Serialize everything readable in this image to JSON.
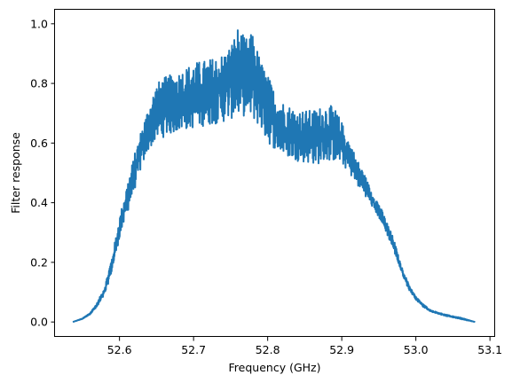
{
  "chart_data": {
    "type": "line",
    "title": "",
    "xlabel": "Frequency (GHz)",
    "ylabel": "Filter response",
    "xlim": [
      52.513,
      53.107
    ],
    "ylim": [
      -0.05,
      1.05
    ],
    "xticks": [
      52.6,
      52.7,
      52.8,
      52.9,
      53.0,
      53.1
    ],
    "xtick_labels": [
      "52.6",
      "52.7",
      "52.8",
      "52.9",
      "53.0",
      "53.1"
    ],
    "yticks": [
      0.0,
      0.2,
      0.4,
      0.6,
      0.8,
      1.0
    ],
    "ytick_labels": [
      "0.0",
      "0.2",
      "0.4",
      "0.6",
      "0.8",
      "1.0"
    ],
    "grid": false,
    "legend": "none",
    "series": [
      {
        "color": "#1f77b4",
        "x_start": 52.537,
        "x_end": 53.08,
        "envelope_x": [
          52.537,
          52.55,
          52.56,
          52.57,
          52.58,
          52.59,
          52.6,
          52.61,
          52.62,
          52.63,
          52.64,
          52.65,
          52.66,
          52.68,
          52.7,
          52.72,
          52.74,
          52.75,
          52.76,
          52.77,
          52.78,
          52.79,
          52.8,
          52.81,
          52.82,
          52.84,
          52.86,
          52.87,
          52.88,
          52.89,
          52.9,
          52.91,
          52.92,
          52.93,
          52.94,
          52.95,
          52.96,
          52.97,
          52.98,
          52.99,
          53.0,
          53.01,
          53.02,
          53.04,
          53.06,
          53.08
        ],
        "envelope_lower": [
          0.0,
          0.01,
          0.025,
          0.05,
          0.09,
          0.17,
          0.28,
          0.36,
          0.44,
          0.52,
          0.58,
          0.61,
          0.62,
          0.64,
          0.65,
          0.66,
          0.67,
          0.68,
          0.69,
          0.69,
          0.68,
          0.65,
          0.6,
          0.58,
          0.56,
          0.54,
          0.53,
          0.53,
          0.54,
          0.54,
          0.53,
          0.5,
          0.46,
          0.43,
          0.39,
          0.35,
          0.3,
          0.24,
          0.17,
          0.11,
          0.075,
          0.05,
          0.035,
          0.02,
          0.01,
          0.0
        ],
        "envelope_upper": [
          0.0,
          0.012,
          0.03,
          0.065,
          0.12,
          0.22,
          0.35,
          0.46,
          0.56,
          0.65,
          0.73,
          0.8,
          0.82,
          0.84,
          0.87,
          0.88,
          0.9,
          0.93,
          0.99,
          0.95,
          0.97,
          0.88,
          0.83,
          0.77,
          0.74,
          0.71,
          0.71,
          0.72,
          0.73,
          0.72,
          0.67,
          0.61,
          0.55,
          0.5,
          0.44,
          0.4,
          0.34,
          0.28,
          0.19,
          0.13,
          0.085,
          0.06,
          0.04,
          0.025,
          0.015,
          0.0
        ]
      }
    ]
  }
}
